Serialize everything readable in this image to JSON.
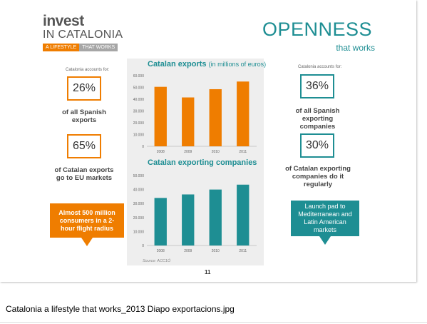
{
  "logo": {
    "line1": "invest",
    "line2": "IN CATALONIA",
    "tag_a": "A LIFESTYLE",
    "tag_b": "THAT WORKS"
  },
  "headline": {
    "title": "OPENNESS",
    "subtitle": "that works"
  },
  "left_column": {
    "caption": "Catalonia accounts for:",
    "stat1": {
      "value": "26%",
      "text": "of all Spanish exports"
    },
    "stat2": {
      "value": "65%",
      "text": "of Catalan exports go to EU markets"
    },
    "callout": "Almost 500 million consumers in a 2-hour flight radius"
  },
  "right_column": {
    "caption": "Catalonia accounts for:",
    "stat1": {
      "value": "36%",
      "text": "of all Spanish exporting companies"
    },
    "stat2": {
      "value": "30%",
      "text": "of Catalan exporting companies do it regularly"
    },
    "callout": "Launch pad to Mediterranean and Latin American markets"
  },
  "colors": {
    "orange": "#ef7d00",
    "teal": "#1e8e93",
    "panel": "#eeeeee"
  },
  "chart_data": [
    {
      "type": "bar",
      "title": "Catalan exports",
      "title_unit": "(in millions of euros)",
      "categories": [
        "2008",
        "2009",
        "2010",
        "2011"
      ],
      "values": [
        50500,
        41500,
        48500,
        55000
      ],
      "ylim": [
        0,
        60000
      ],
      "yticks": [
        "0",
        "10.000",
        "20.000",
        "30.000",
        "40.000",
        "50.000",
        "60.000"
      ],
      "color": "#ef7d00",
      "grid": false
    },
    {
      "type": "bar",
      "title": "Catalan exporting companies",
      "title_unit": "",
      "categories": [
        "2008",
        "2009",
        "2010",
        "2011"
      ],
      "values": [
        34000,
        36500,
        40000,
        43500
      ],
      "ylim": [
        0,
        50000
      ],
      "yticks": [
        "0",
        "10.000",
        "20.000",
        "30.000",
        "40.000",
        "50.000"
      ],
      "color": "#1e8e93",
      "grid": false
    }
  ],
  "source": "Source: ACC1Ó",
  "page_number": "11",
  "file_caption": "Catalonia a lifestyle that works_2013 Diapo exportacions.jpg"
}
